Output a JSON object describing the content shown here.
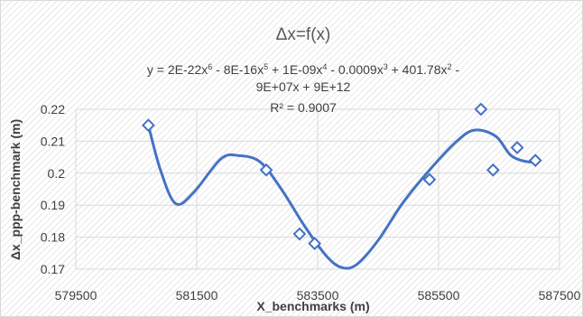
{
  "chart_data": {
    "type": "scatter",
    "title": "Δx=f(x)",
    "xlabel": "X_benchmarks (m)",
    "ylabel": "Δx_ppp-benchmark (m)",
    "xlim": [
      579500,
      587500
    ],
    "ylim": [
      0.17,
      0.22
    ],
    "x_ticks": [
      "579500",
      "581500",
      "583500",
      "585500",
      "587500"
    ],
    "y_ticks": [
      "0.17",
      "0.18",
      "0.19",
      "0.2",
      "0.21",
      "0.22"
    ],
    "x_tick_values": [
      579500,
      581500,
      583500,
      585500,
      587500
    ],
    "y_tick_values": [
      0.17,
      0.18,
      0.19,
      0.2,
      0.21,
      0.22
    ],
    "grid": true,
    "background_pattern": "diagonal-hatch",
    "marker": "diamond-open",
    "series": [
      {
        "color": "#4472c4",
        "x": [
          580700,
          582650,
          583200,
          583450,
          585350,
          586200,
          586400,
          586800,
          587100
        ],
        "y": [
          0.215,
          0.201,
          0.181,
          0.178,
          0.198,
          0.22,
          0.201,
          0.208,
          0.204
        ]
      }
    ],
    "trendline": {
      "type": "polynomial",
      "order": 6,
      "color": "#4472c4",
      "points": [
        [
          580700,
          0.215
        ],
        [
          580900,
          0.201
        ],
        [
          581150,
          0.1905
        ],
        [
          581450,
          0.194
        ],
        [
          581900,
          0.2045
        ],
        [
          582200,
          0.2055
        ],
        [
          582550,
          0.2035
        ],
        [
          582900,
          0.195
        ],
        [
          583300,
          0.183
        ],
        [
          583650,
          0.174
        ],
        [
          583900,
          0.1705
        ],
        [
          584150,
          0.1715
        ],
        [
          584500,
          0.179
        ],
        [
          584900,
          0.1905
        ],
        [
          585350,
          0.201
        ],
        [
          585800,
          0.21
        ],
        [
          586100,
          0.2135
        ],
        [
          586450,
          0.2115
        ],
        [
          586700,
          0.2055
        ],
        [
          587000,
          0.2035
        ],
        [
          587100,
          0.2045
        ]
      ]
    },
    "annotations": {
      "equation_segments_line1": [
        {
          "t": "y = 2E-22x",
          "sup": false
        },
        {
          "t": "6",
          "sup": true
        },
        {
          "t": " - 8E-16x",
          "sup": false
        },
        {
          "t": "5",
          "sup": true
        },
        {
          "t": " + 1E-09x",
          "sup": false
        },
        {
          "t": "4",
          "sup": true
        },
        {
          "t": " - 0.0009x",
          "sup": false
        },
        {
          "t": "3",
          "sup": true
        },
        {
          "t": " + 401.78x",
          "sup": false
        },
        {
          "t": "2",
          "sup": true
        },
        {
          "t": " -",
          "sup": false
        }
      ],
      "equation_line2": "9E+07x + 9E+12",
      "r_squared": "R² = 0.9007"
    }
  }
}
